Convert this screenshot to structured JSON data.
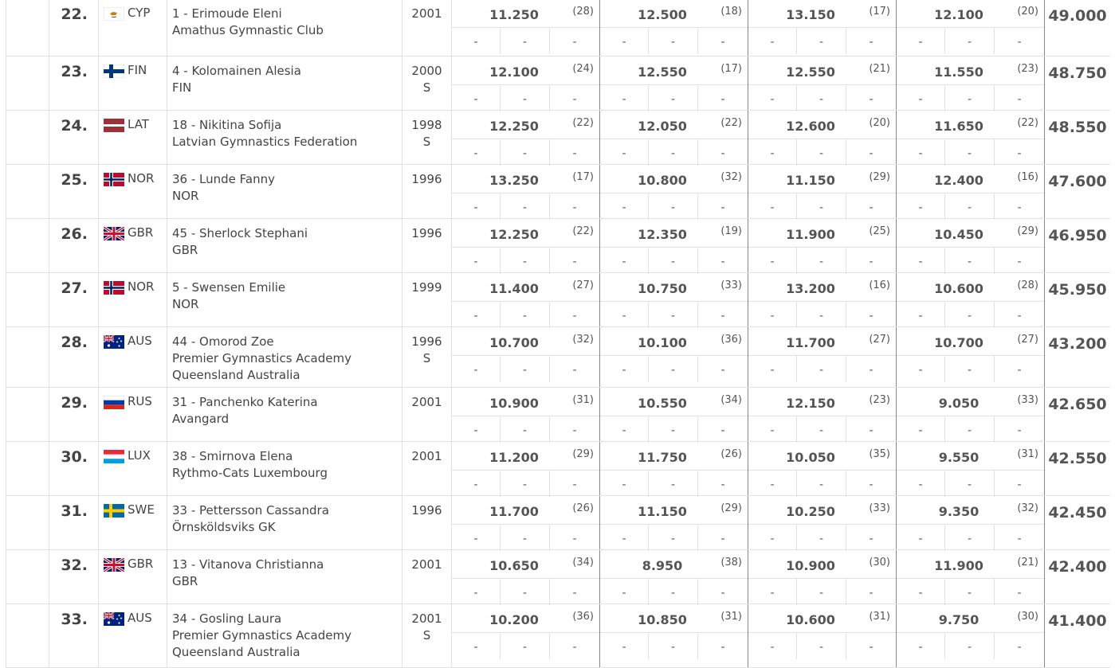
{
  "app": {
    "colors": {
      "text": "#444444",
      "grid": "#e2e2e2",
      "apparatus_divider": "#888888"
    }
  },
  "results": [
    {
      "rank": "22.",
      "noc": "CYP",
      "flag": "cyp-flag-icon",
      "gymnast": "1 - Erimoude Eleni",
      "club_lines": [
        "Amathus Gymnastic Club"
      ],
      "year": "2001",
      "senior": "",
      "apparatus": [
        {
          "score": "11.250",
          "rank": "(28)"
        },
        {
          "score": "12.500",
          "rank": "(18)"
        },
        {
          "score": "13.150",
          "rank": "(17)"
        },
        {
          "score": "12.100",
          "rank": "(20)"
        }
      ],
      "total": "49.000"
    },
    {
      "rank": "23.",
      "noc": "FIN",
      "flag": "fin-flag-icon",
      "gymnast": "4 - Kolomainen Alesia",
      "club_lines": [
        "FIN"
      ],
      "year": "2000",
      "senior": "S",
      "apparatus": [
        {
          "score": "12.100",
          "rank": "(24)"
        },
        {
          "score": "12.550",
          "rank": "(17)"
        },
        {
          "score": "12.550",
          "rank": "(21)"
        },
        {
          "score": "11.550",
          "rank": "(23)"
        }
      ],
      "total": "48.750"
    },
    {
      "rank": "24.",
      "noc": "LAT",
      "flag": "lat-flag-icon",
      "gymnast": "18 - Nikitina Sofija",
      "club_lines": [
        "Latvian Gymnastics Federation"
      ],
      "year": "1998",
      "senior": "S",
      "apparatus": [
        {
          "score": "12.250",
          "rank": "(22)"
        },
        {
          "score": "12.050",
          "rank": "(22)"
        },
        {
          "score": "12.600",
          "rank": "(20)"
        },
        {
          "score": "11.650",
          "rank": "(22)"
        }
      ],
      "total": "48.550"
    },
    {
      "rank": "25.",
      "noc": "NOR",
      "flag": "nor-flag-icon",
      "gymnast": "36 - Lunde Fanny",
      "club_lines": [
        "NOR"
      ],
      "year": "1996",
      "senior": "",
      "apparatus": [
        {
          "score": "13.250",
          "rank": "(17)"
        },
        {
          "score": "10.800",
          "rank": "(32)"
        },
        {
          "score": "11.150",
          "rank": "(29)"
        },
        {
          "score": "12.400",
          "rank": "(16)"
        }
      ],
      "total": "47.600"
    },
    {
      "rank": "26.",
      "noc": "GBR",
      "flag": "gbr-flag-icon",
      "gymnast": "45 - Sherlock Stephani",
      "club_lines": [
        "GBR"
      ],
      "year": "1996",
      "senior": "",
      "apparatus": [
        {
          "score": "12.250",
          "rank": "(22)"
        },
        {
          "score": "12.350",
          "rank": "(19)"
        },
        {
          "score": "11.900",
          "rank": "(25)"
        },
        {
          "score": "10.450",
          "rank": "(29)"
        }
      ],
      "total": "46.950"
    },
    {
      "rank": "27.",
      "noc": "NOR",
      "flag": "nor-flag-icon",
      "gymnast": "5 - Swensen Emilie",
      "club_lines": [
        "NOR"
      ],
      "year": "1999",
      "senior": "",
      "apparatus": [
        {
          "score": "11.400",
          "rank": "(27)"
        },
        {
          "score": "10.750",
          "rank": "(33)"
        },
        {
          "score": "13.200",
          "rank": "(16)"
        },
        {
          "score": "10.600",
          "rank": "(28)"
        }
      ],
      "total": "45.950"
    },
    {
      "rank": "28.",
      "noc": "AUS",
      "flag": "aus-flag-icon",
      "gymnast": "44 - Omorod Zoe",
      "club_lines": [
        "Premier Gymnastics Academy",
        "Queensland Australia"
      ],
      "year": "1996",
      "senior": "S",
      "apparatus": [
        {
          "score": "10.700",
          "rank": "(32)"
        },
        {
          "score": "10.100",
          "rank": "(36)"
        },
        {
          "score": "11.700",
          "rank": "(27)"
        },
        {
          "score": "10.700",
          "rank": "(27)"
        }
      ],
      "total": "43.200"
    },
    {
      "rank": "29.",
      "noc": "RUS",
      "flag": "rus-flag-icon",
      "gymnast": "31 - Panchenko Katerina",
      "club_lines": [
        "Avangard"
      ],
      "year": "2001",
      "senior": "",
      "apparatus": [
        {
          "score": "10.900",
          "rank": "(31)"
        },
        {
          "score": "10.550",
          "rank": "(34)"
        },
        {
          "score": "12.150",
          "rank": "(23)"
        },
        {
          "score": "9.050",
          "rank": "(33)"
        }
      ],
      "total": "42.650"
    },
    {
      "rank": "30.",
      "noc": "LUX",
      "flag": "lux-flag-icon",
      "gymnast": "38 - Smirnova Elena",
      "club_lines": [
        "Rythmo-Cats Luxembourg"
      ],
      "year": "2001",
      "senior": "",
      "apparatus": [
        {
          "score": "11.200",
          "rank": "(29)"
        },
        {
          "score": "11.750",
          "rank": "(26)"
        },
        {
          "score": "10.050",
          "rank": "(35)"
        },
        {
          "score": "9.550",
          "rank": "(31)"
        }
      ],
      "total": "42.550"
    },
    {
      "rank": "31.",
      "noc": "SWE",
      "flag": "swe-flag-icon",
      "gymnast": "33 - Pettersson Cassandra",
      "club_lines": [
        "Örnsköldsviks GK"
      ],
      "year": "1996",
      "senior": "",
      "apparatus": [
        {
          "score": "11.700",
          "rank": "(26)"
        },
        {
          "score": "11.150",
          "rank": "(29)"
        },
        {
          "score": "10.250",
          "rank": "(33)"
        },
        {
          "score": "9.350",
          "rank": "(32)"
        }
      ],
      "total": "42.450"
    },
    {
      "rank": "32.",
      "noc": "GBR",
      "flag": "gbr-flag-icon",
      "gymnast": "13 - Vitanova Christianna",
      "club_lines": [
        "GBR"
      ],
      "year": "2001",
      "senior": "",
      "apparatus": [
        {
          "score": "10.650",
          "rank": "(34)"
        },
        {
          "score": "8.950",
          "rank": "(38)"
        },
        {
          "score": "10.900",
          "rank": "(30)"
        },
        {
          "score": "11.900",
          "rank": "(21)"
        }
      ],
      "total": "42.400"
    },
    {
      "rank": "33.",
      "noc": "AUS",
      "flag": "aus-flag-icon",
      "gymnast": "34 - Gosling Laura",
      "club_lines": [
        "Premier Gymnastics Academy",
        "Queensland Australia"
      ],
      "year": "2001",
      "senior": "S",
      "apparatus": [
        {
          "score": "10.200",
          "rank": "(36)"
        },
        {
          "score": "10.850",
          "rank": "(31)"
        },
        {
          "score": "10.600",
          "rank": "(31)"
        },
        {
          "score": "9.750",
          "rank": "(30)"
        }
      ],
      "total": "41.400"
    }
  ],
  "sub_placeholder": "-"
}
